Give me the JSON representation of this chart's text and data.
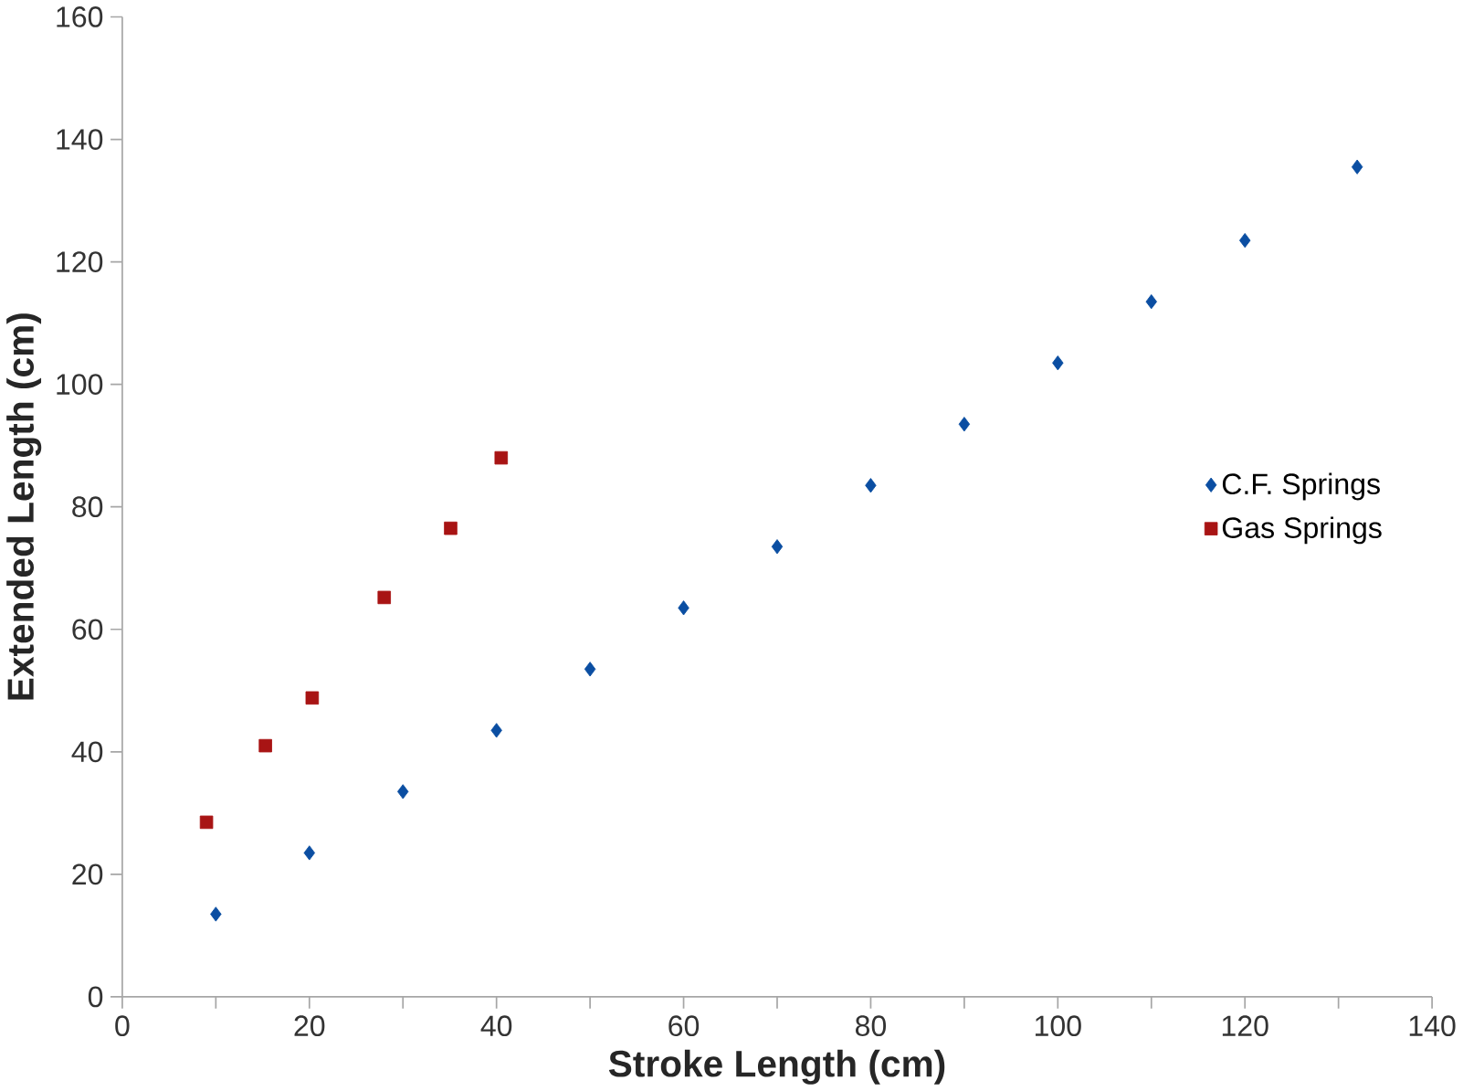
{
  "chart_data": {
    "type": "scatter",
    "xlabel": "Stroke Length (cm)",
    "ylabel": "Extended Length (cm)",
    "xlim": [
      0,
      140
    ],
    "xticks": [
      0,
      20,
      40,
      60,
      80,
      100,
      120,
      140
    ],
    "ylim": [
      0,
      160
    ],
    "yticks": [
      0,
      20,
      40,
      60,
      80,
      100,
      120,
      140,
      160
    ],
    "grid": false,
    "legend": "right",
    "series": [
      {
        "name": "C.F. Springs",
        "color": "#0b4ea2",
        "marker": "diamond",
        "x": [
          10,
          20,
          30,
          40,
          50,
          60,
          70,
          80,
          90,
          100,
          110,
          120,
          132
        ],
        "values": [
          13.5,
          23.5,
          33.5,
          43.5,
          53.5,
          63.5,
          73.5,
          83.5,
          93.5,
          103.5,
          113.5,
          123.5,
          135.5
        ]
      },
      {
        "name": "Gas Springs",
        "color": "#a81414",
        "marker": "square",
        "x": [
          9,
          15.3,
          20.3,
          28,
          35.1,
          40.5
        ],
        "values": [
          28.5,
          41,
          48.8,
          65.2,
          76.5,
          88
        ]
      }
    ]
  }
}
